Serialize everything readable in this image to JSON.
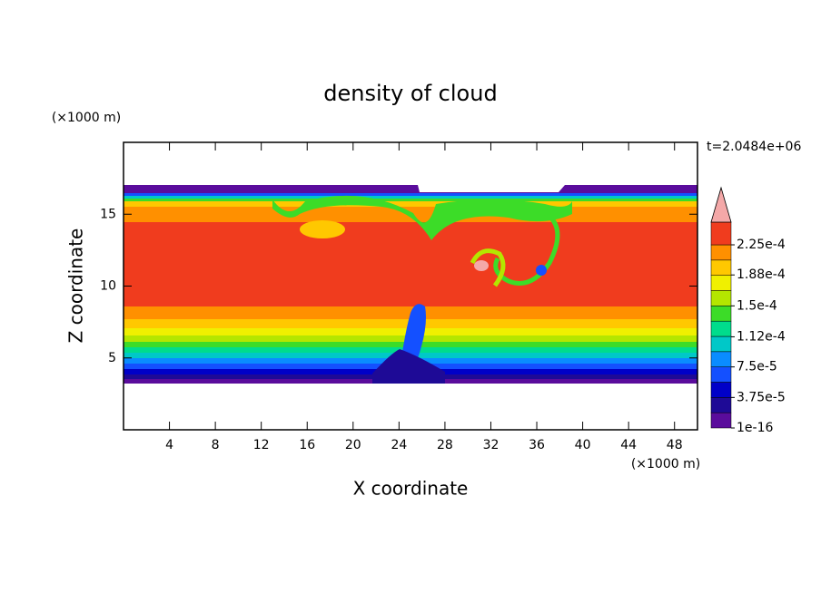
{
  "chart_data": {
    "type": "contour",
    "title": "density of cloud",
    "xlabel": "X coordinate",
    "ylabel": "Z coordinate",
    "x_unit": "(×1000 m)",
    "y_unit": "(×1000 m)",
    "annotation": "t=2.0484e+06",
    "xlim": [
      0,
      50
    ],
    "ylim": [
      0,
      20
    ],
    "xticks": [
      4,
      8,
      12,
      16,
      20,
      24,
      28,
      32,
      36,
      40,
      44,
      48
    ],
    "yticks": [
      5,
      10,
      15
    ],
    "colorbar": {
      "ticks": [
        {
          "value": 1e-16,
          "label": "1e-16"
        },
        {
          "value": 3.75e-05,
          "label": "3.75e-5"
        },
        {
          "value": 7.5e-05,
          "label": "7.5e-5"
        },
        {
          "value": 0.000112,
          "label": "1.12e-4"
        },
        {
          "value": 0.00015,
          "label": "1.5e-4"
        },
        {
          "value": 0.000188,
          "label": "1.88e-4"
        },
        {
          "value": 0.000225,
          "label": "2.25e-4"
        }
      ],
      "colors": [
        "#5a0c9c",
        "#1e0a96",
        "#0000c8",
        "#1450ff",
        "#0a8cff",
        "#00c8c8",
        "#00dc8c",
        "#3cdc28",
        "#b4e600",
        "#f0f000",
        "#ffc800",
        "#ff9000",
        "#f03c1e"
      ],
      "extend_color": "#f4a8a8"
    }
  }
}
